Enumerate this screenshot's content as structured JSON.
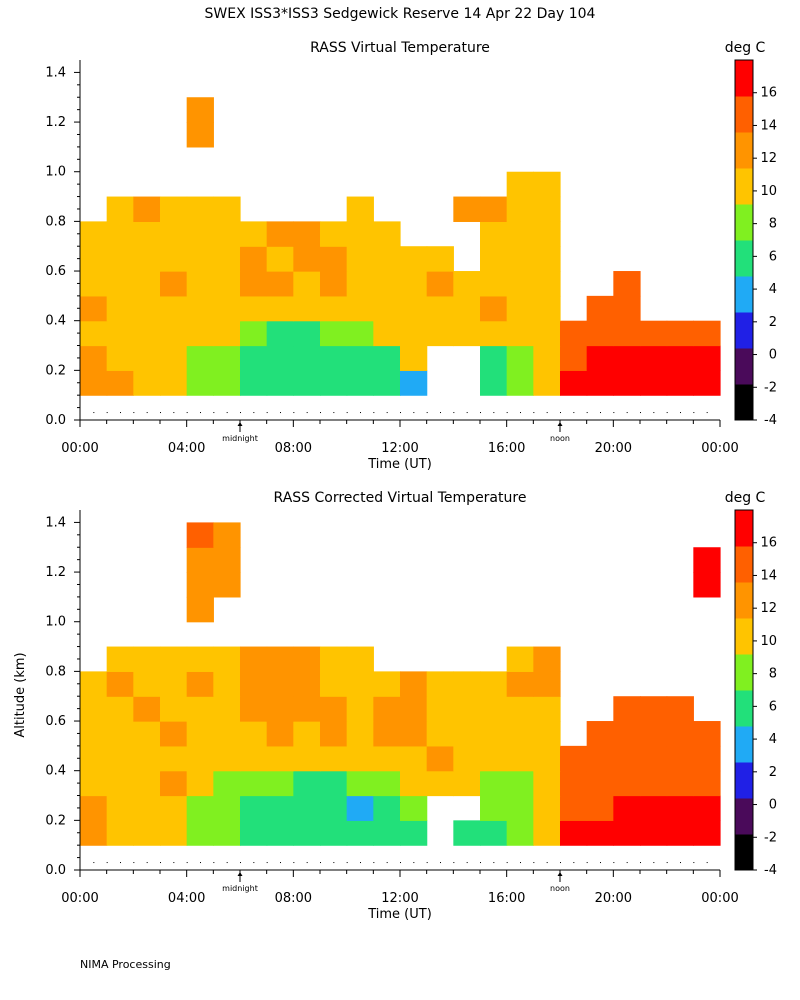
{
  "suptitle": "SWEX ISS3*ISS3 Sedgewick Reserve  14 Apr 22 Day 104",
  "footer": "NIMA Processing",
  "colors": {
    "bins": [
      "#000000",
      "#4a0a5a",
      "#2020e6",
      "#20aaf5",
      "#22e07a",
      "#80f020",
      "#ffc400",
      "#ff9400",
      "#ff6000",
      "#ff0000"
    ],
    "missing": "#ffffff"
  },
  "chart_data": [
    {
      "type": "heatmap",
      "title": "RASS Virtual Temperature",
      "xlabel": "Time (UT)",
      "ylabel": "",
      "xlim": [
        0,
        24
      ],
      "ylim": [
        0,
        1.45
      ],
      "xticks": [
        "00:00",
        "04:00",
        "08:00",
        "12:00",
        "16:00",
        "20:00",
        "00:00"
      ],
      "yticks": [
        "0.0",
        "0.2",
        "0.4",
        "0.6",
        "0.8",
        "1.0",
        "1.2",
        "1.4"
      ],
      "markers": [
        {
          "label": "midnight",
          "x": 6
        },
        {
          "label": "noon",
          "x": 18
        }
      ],
      "colorbar": {
        "label": "deg C",
        "ticks": [
          "16",
          "14",
          "12",
          "10",
          "8",
          "6",
          "4",
          "2",
          "0",
          "-2",
          "-4"
        ],
        "min": -4,
        "max": 18,
        "step": 2
      },
      "x_hours": [
        0.5,
        1.5,
        2.5,
        3.5,
        4.5,
        5.5,
        6.5,
        7.5,
        8.5,
        9.5,
        10.5,
        11.5,
        12.5,
        13.5,
        14.5,
        15.5,
        16.5,
        17.5,
        18.5,
        19.5,
        20.5,
        21.5,
        22.5,
        23.5
      ],
      "y_km": [
        0.15,
        0.25,
        0.35,
        0.45,
        0.55,
        0.65,
        0.75,
        0.85,
        0.95,
        1.05,
        1.15,
        1.25,
        1.35
      ],
      "values_degC": [
        [
          11,
          10.5,
          9,
          9,
          7,
          7,
          5,
          5,
          5,
          5,
          5,
          4.5,
          3,
          null,
          null,
          5,
          6.5,
          9,
          15,
          15,
          15,
          15,
          15,
          15
        ],
        [
          10,
          9,
          9,
          9,
          7,
          7,
          5,
          5,
          5,
          5,
          5,
          5,
          9,
          null,
          null,
          5,
          7,
          9,
          13,
          15,
          15,
          15,
          14,
          15
        ],
        [
          9,
          9,
          9,
          9,
          9,
          9,
          6,
          5,
          5,
          6,
          7,
          8,
          9,
          9,
          9,
          9,
          9,
          9,
          12,
          13,
          13,
          13,
          13,
          13
        ],
        [
          10,
          9,
          9,
          9,
          9,
          9,
          9,
          9,
          9,
          9,
          9,
          9,
          9,
          9,
          9,
          10,
          9,
          9,
          null,
          13,
          13,
          null,
          null,
          null
        ],
        [
          9,
          9,
          9,
          10,
          9,
          9,
          10,
          10,
          9,
          10,
          9,
          9,
          9,
          10,
          9,
          9,
          9,
          9,
          null,
          null,
          12,
          null,
          null,
          null
        ],
        [
          9,
          9,
          9,
          9,
          9,
          9,
          10,
          9,
          10,
          10,
          9,
          9,
          9,
          9,
          null,
          9,
          9,
          9,
          null,
          null,
          null,
          null,
          null,
          null
        ],
        [
          9,
          9,
          9,
          9,
          9,
          9,
          9,
          10,
          10,
          9,
          9,
          9,
          null,
          null,
          null,
          9,
          9,
          9,
          null,
          null,
          null,
          null,
          null,
          null
        ],
        [
          null,
          9,
          10,
          9,
          9,
          9,
          null,
          null,
          null,
          null,
          9,
          null,
          null,
          null,
          11,
          10,
          9,
          9,
          null,
          null,
          null,
          null,
          null,
          null
        ],
        [
          null,
          null,
          null,
          null,
          null,
          null,
          null,
          null,
          null,
          null,
          null,
          null,
          null,
          null,
          null,
          null,
          9,
          9,
          null,
          null,
          null,
          null,
          null,
          null
        ],
        [
          null,
          null,
          null,
          null,
          null,
          null,
          null,
          null,
          null,
          null,
          null,
          null,
          null,
          null,
          null,
          null,
          null,
          null,
          null,
          null,
          null,
          null,
          null,
          null
        ],
        [
          null,
          null,
          null,
          null,
          11,
          null,
          null,
          null,
          null,
          null,
          null,
          null,
          null,
          null,
          null,
          null,
          null,
          null,
          null,
          null,
          null,
          null,
          null,
          null
        ],
        [
          null,
          null,
          null,
          null,
          11,
          null,
          null,
          null,
          null,
          null,
          null,
          null,
          null,
          null,
          null,
          null,
          null,
          null,
          null,
          null,
          null,
          null,
          null,
          null
        ],
        [
          null,
          null,
          null,
          null,
          null,
          null,
          null,
          null,
          null,
          null,
          null,
          null,
          null,
          null,
          null,
          null,
          null,
          null,
          null,
          null,
          null,
          null,
          null,
          null
        ]
      ]
    },
    {
      "type": "heatmap",
      "title": "RASS Corrected Virtual Temperature",
      "xlabel": "Time (UT)",
      "ylabel": "Altitude (km)",
      "xlim": [
        0,
        24
      ],
      "ylim": [
        0,
        1.45
      ],
      "xticks": [
        "00:00",
        "04:00",
        "08:00",
        "12:00",
        "16:00",
        "20:00",
        "00:00"
      ],
      "yticks": [
        "0.0",
        "0.2",
        "0.4",
        "0.6",
        "0.8",
        "1.0",
        "1.2",
        "1.4"
      ],
      "markers": [
        {
          "label": "midnight",
          "x": 6
        },
        {
          "label": "noon",
          "x": 18
        }
      ],
      "colorbar": {
        "label": "deg C",
        "ticks": [
          "16",
          "14",
          "12",
          "10",
          "8",
          "6",
          "4",
          "2",
          "0",
          "-2",
          "-4"
        ],
        "min": -4,
        "max": 18,
        "step": 2
      },
      "x_hours": [
        0.5,
        1.5,
        2.5,
        3.5,
        4.5,
        5.5,
        6.5,
        7.5,
        8.5,
        9.5,
        10.5,
        11.5,
        12.5,
        13.5,
        14.5,
        15.5,
        16.5,
        17.5,
        18.5,
        19.5,
        20.5,
        21.5,
        22.5,
        23.5
      ],
      "y_km": [
        0.15,
        0.25,
        0.35,
        0.45,
        0.55,
        0.65,
        0.75,
        0.85,
        0.95,
        1.05,
        1.15,
        1.25,
        1.35
      ],
      "values_degC": [
        [
          10,
          9,
          9,
          9,
          7,
          6,
          5,
          5,
          5,
          5,
          5,
          4.5,
          4,
          null,
          5,
          5,
          7,
          9,
          15,
          15,
          15,
          15,
          15,
          15
        ],
        [
          10,
          9,
          9,
          9,
          7,
          6,
          5,
          5,
          5,
          5,
          3,
          5,
          7,
          null,
          null,
          6,
          7,
          9,
          13,
          13,
          15,
          15,
          14,
          14
        ],
        [
          9,
          9,
          9,
          10,
          9,
          7,
          6,
          6,
          5,
          5,
          6,
          7,
          9,
          9,
          9,
          7,
          7,
          9,
          12,
          13,
          13,
          13,
          13,
          13
        ],
        [
          9,
          9,
          9,
          9,
          9,
          9,
          9,
          9,
          9,
          9,
          9,
          9,
          9,
          10,
          9,
          9,
          9,
          9,
          13,
          13,
          12,
          13,
          12,
          13
        ],
        [
          9,
          9,
          9,
          10,
          9,
          9,
          9,
          10,
          9,
          10,
          9,
          10,
          10,
          9,
          9,
          9,
          9,
          9,
          null,
          12,
          13,
          13,
          13,
          12
        ],
        [
          9,
          9,
          10,
          9,
          9,
          9,
          10,
          10,
          10,
          10,
          9,
          10,
          10,
          9,
          9,
          9,
          9,
          9,
          null,
          null,
          12,
          12,
          12,
          null
        ],
        [
          9,
          10,
          9,
          9,
          10,
          9,
          10,
          10,
          10,
          9,
          9,
          9,
          10,
          9,
          9,
          9,
          10,
          10,
          null,
          null,
          null,
          null,
          null,
          null
        ],
        [
          null,
          9,
          9,
          9,
          9,
          9,
          10,
          11,
          10,
          9,
          9,
          null,
          null,
          null,
          null,
          null,
          9,
          10,
          null,
          null,
          null,
          null,
          null,
          null
        ],
        [
          null,
          null,
          null,
          null,
          null,
          null,
          null,
          null,
          null,
          null,
          null,
          null,
          null,
          null,
          null,
          null,
          null,
          null,
          null,
          null,
          null,
          null,
          null,
          null
        ],
        [
          null,
          null,
          null,
          null,
          11,
          null,
          null,
          null,
          null,
          null,
          null,
          null,
          null,
          null,
          null,
          null,
          null,
          null,
          null,
          null,
          null,
          null,
          null,
          null
        ],
        [
          null,
          null,
          null,
          null,
          11,
          11,
          null,
          null,
          null,
          null,
          null,
          null,
          null,
          null,
          null,
          null,
          null,
          null,
          null,
          null,
          null,
          null,
          null,
          15
        ],
        [
          null,
          null,
          null,
          null,
          11,
          11,
          null,
          null,
          null,
          null,
          null,
          null,
          null,
          null,
          null,
          null,
          null,
          null,
          null,
          null,
          null,
          null,
          null,
          15
        ],
        [
          null,
          null,
          null,
          null,
          12,
          11,
          null,
          null,
          null,
          null,
          null,
          null,
          null,
          null,
          null,
          null,
          null,
          null,
          null,
          null,
          null,
          null,
          null,
          null
        ]
      ]
    }
  ]
}
